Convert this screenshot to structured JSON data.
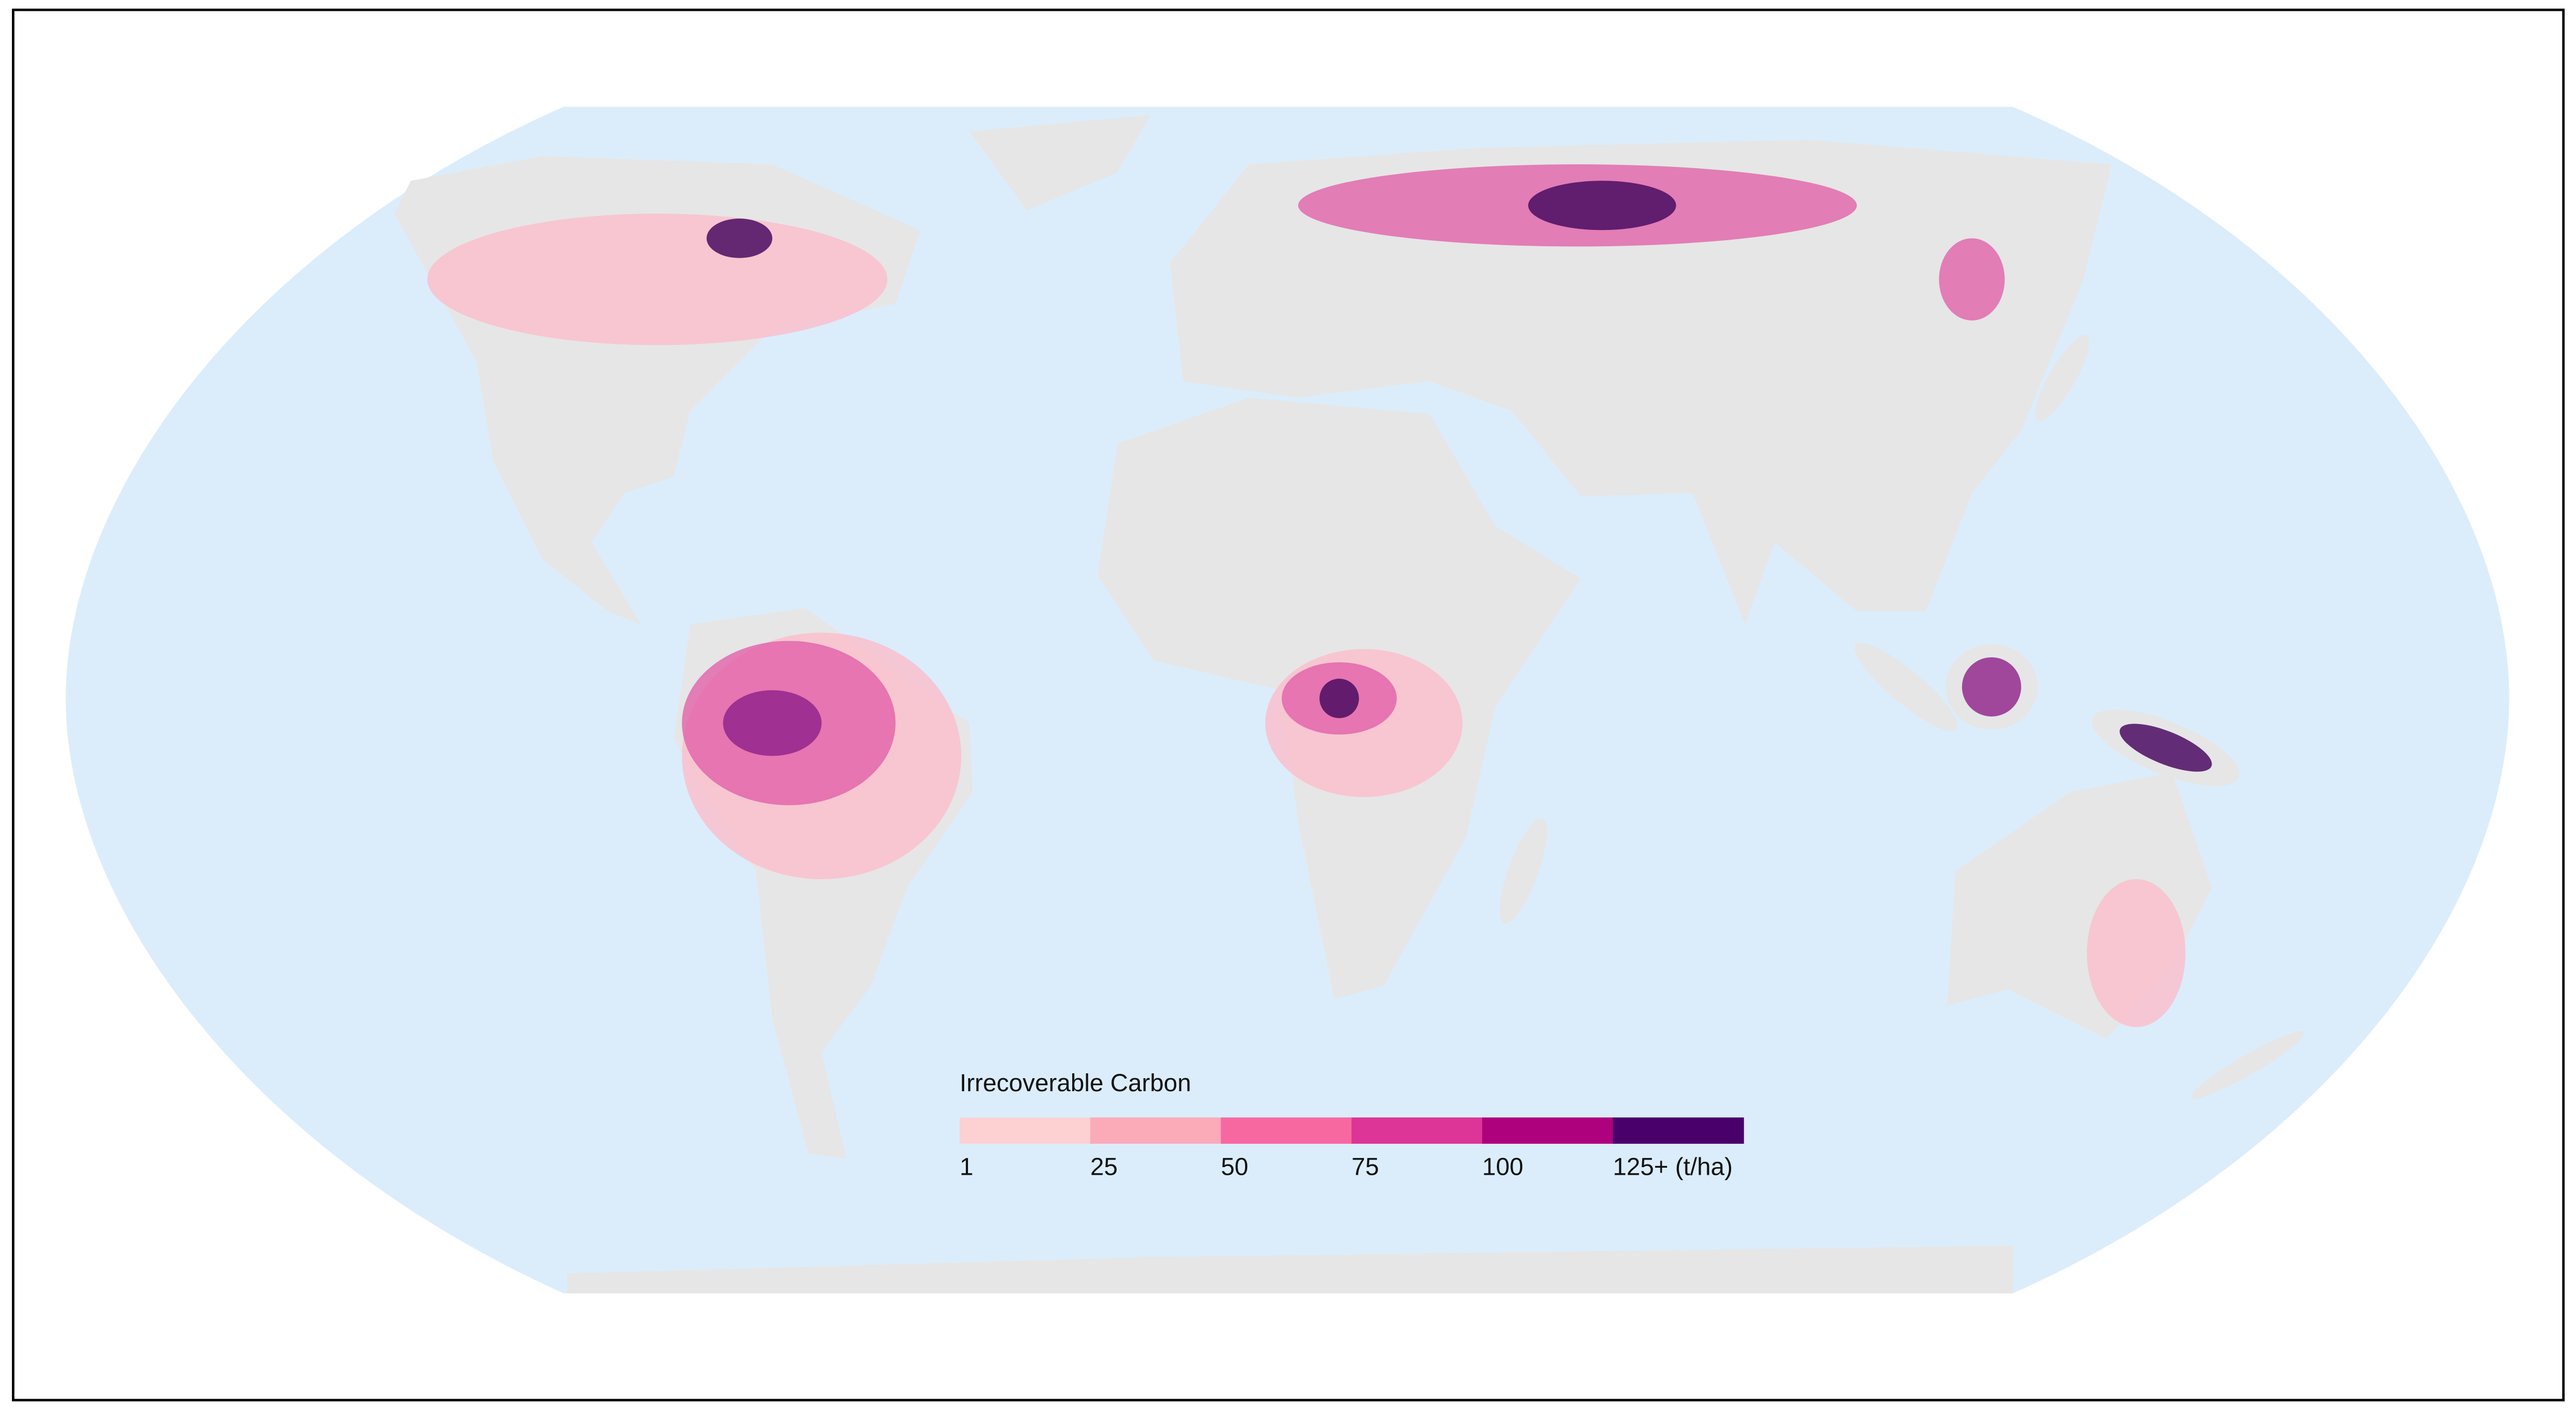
{
  "legend": {
    "title": "Irrecoverable Carbon",
    "ticks": [
      1,
      25,
      50,
      75,
      100,
      {
        "value": 125,
        "label": "125+ (t/ha)"
      }
    ],
    "colors": [
      "#fdd0d2",
      "#fbaab8",
      "#f768a1",
      "#dd3497",
      "#ae017e",
      "#49006a"
    ]
  }
}
